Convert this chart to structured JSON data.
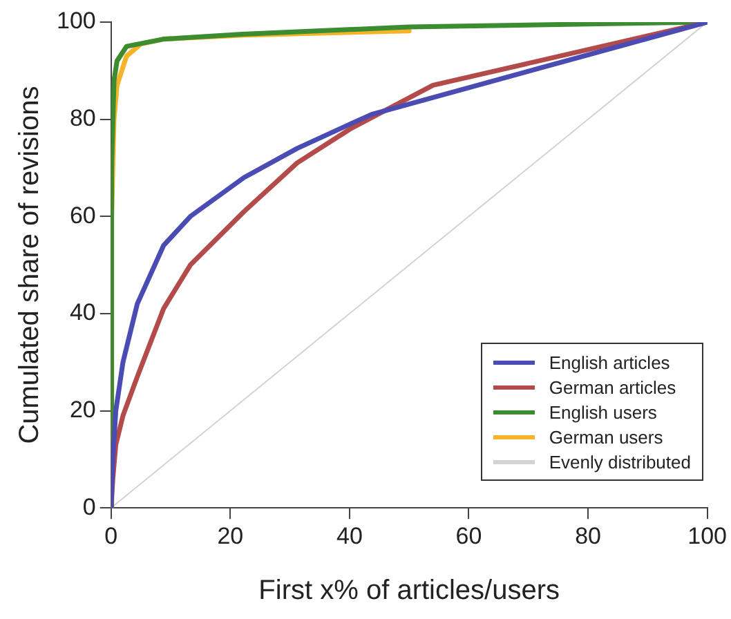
{
  "chart_data": {
    "type": "line",
    "xlabel": "First x% of articles/users",
    "ylabel": "Cumulated share of revisions",
    "xlim": [
      0,
      100
    ],
    "ylim": [
      0,
      100
    ],
    "xticks": [
      0,
      20,
      40,
      60,
      80,
      100
    ],
    "yticks": [
      0,
      20,
      40,
      60,
      80,
      100
    ],
    "grid": false,
    "legend": "bottom right",
    "marker": "none",
    "line_style": "solid",
    "series": [
      {
        "name": "English articles",
        "color": "#4b4bb4",
        "x": [
          0,
          0.3,
          0.8,
          2,
          4.4,
          8.8,
          13.3,
          22.3,
          31.2,
          40.1,
          43.7,
          100
        ],
        "values": [
          0,
          10,
          20,
          30,
          42,
          54,
          60,
          68,
          74,
          79,
          81,
          100
        ]
      },
      {
        "name": "German articles",
        "color": "#b44b4b",
        "x": [
          0,
          0.3,
          0.8,
          2,
          4.4,
          8.8,
          13.3,
          22.3,
          31.2,
          40.1,
          54,
          100
        ],
        "values": [
          0,
          6,
          13,
          19,
          27,
          41,
          50,
          61,
          71,
          78,
          87,
          100
        ]
      },
      {
        "name": "English users",
        "color": "#3c8c32",
        "x": [
          0,
          0.1,
          0.5,
          1,
          2.6,
          8.8,
          22,
          50,
          100
        ],
        "values": [
          0,
          71,
          88,
          92,
          95,
          96.5,
          97.5,
          99,
          100
        ]
      },
      {
        "name": "German users",
        "color": "#f5b428",
        "x": [
          0,
          0.1,
          0.5,
          1,
          2.6,
          5,
          8.8,
          22,
          50
        ],
        "values": [
          0,
          60,
          80,
          87,
          93,
          95.5,
          96.5,
          97.3,
          98.2
        ]
      },
      {
        "name": "Evenly distributed",
        "color": "#d3d3d3",
        "x": [
          0,
          100
        ],
        "values": [
          0,
          100
        ]
      }
    ]
  }
}
